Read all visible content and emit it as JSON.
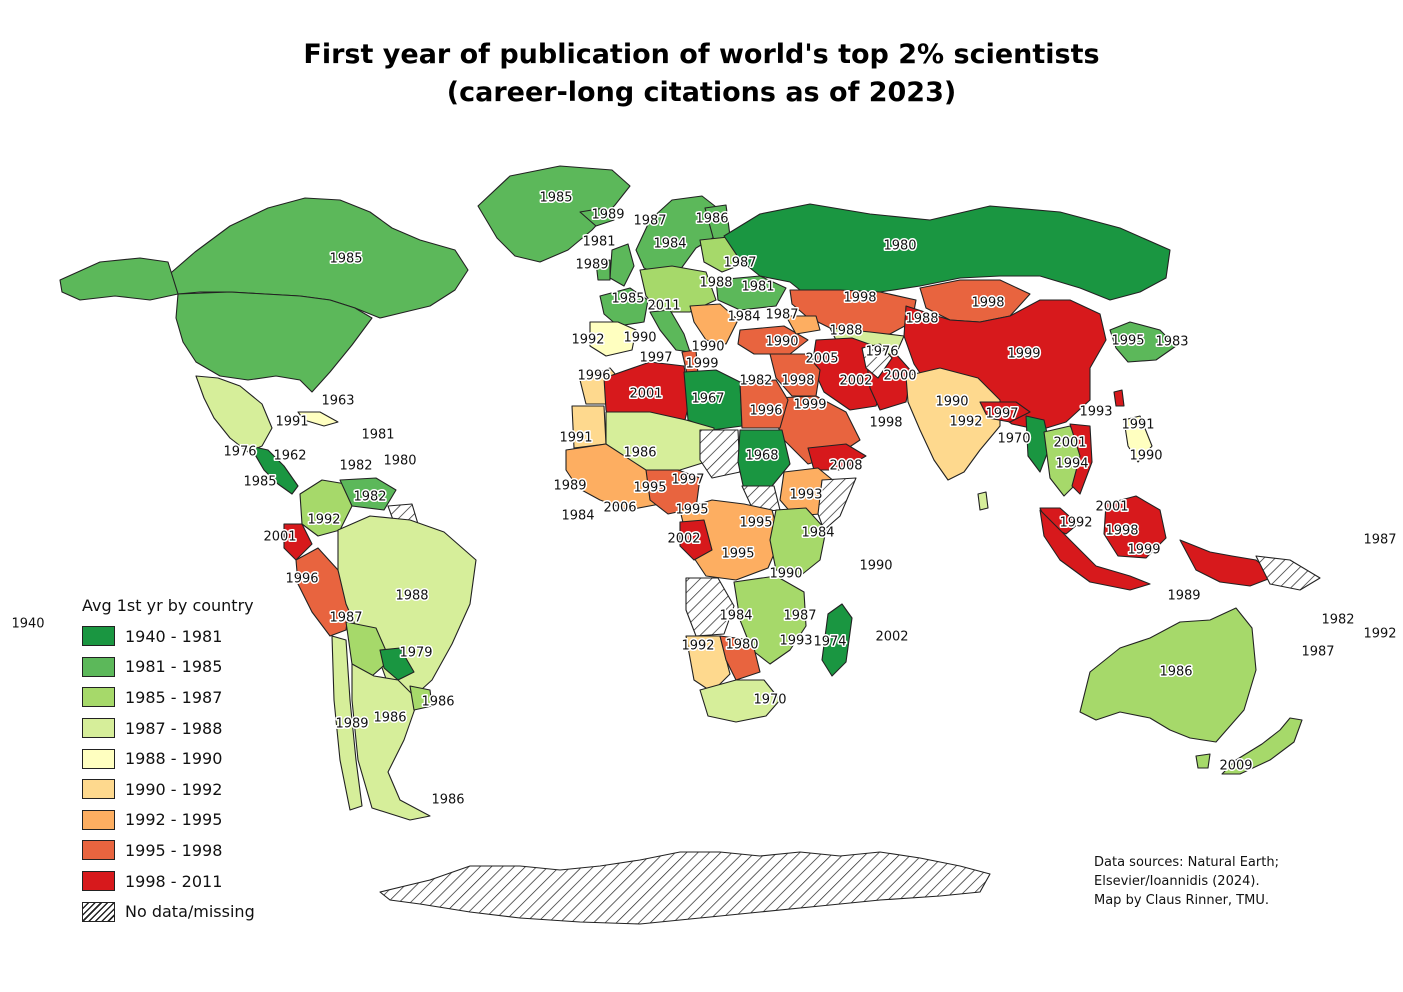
{
  "title": {
    "line1": "First year of publication of world's top 2% scientists",
    "line2": "(career-long citations as of 2023)"
  },
  "legend": {
    "title": "Avg 1st yr by country",
    "classes": [
      {
        "label": "1940 - 1981",
        "color": "#1a9641"
      },
      {
        "label": "1981 - 1985",
        "color": "#5cb85a"
      },
      {
        "label": "1985 - 1987",
        "color": "#a6d96a"
      },
      {
        "label": "1987 - 1988",
        "color": "#d6ee9a"
      },
      {
        "label": "1988 - 1990",
        "color": "#ffffc0"
      },
      {
        "label": "1990 - 1992",
        "color": "#fed98e"
      },
      {
        "label": "1992 - 1995",
        "color": "#fdae61"
      },
      {
        "label": "1995 - 1998",
        "color": "#e8643f"
      },
      {
        "label": "1998 - 2011",
        "color": "#d7191c"
      },
      {
        "label": "No data/missing",
        "color": "hatch"
      }
    ]
  },
  "map_data": {
    "type": "choropleth",
    "classes": [
      "1940-1981",
      "1981-1985",
      "1985-1987",
      "1987-1988",
      "1988-1990",
      "1990-1992",
      "1992-1995",
      "1995-1998",
      "1998-2011",
      "missing"
    ],
    "regions": [
      {
        "name": "Canada",
        "year": "1985",
        "class": 1
      },
      {
        "name": "United States",
        "year": "1983",
        "class": 1
      },
      {
        "name": "Greenland",
        "year": "1985",
        "class": 1
      },
      {
        "name": "Mexico",
        "year": "1988",
        "class": 3
      },
      {
        "name": "Russia",
        "year": "1980",
        "class": 0
      },
      {
        "name": "China",
        "year": "1999",
        "class": 8
      },
      {
        "name": "Mongolia",
        "year": "1998",
        "class": 7
      },
      {
        "name": "Kazakhstan",
        "year": "1998",
        "class": 7
      },
      {
        "name": "India",
        "year": "1992",
        "class": 5
      },
      {
        "name": "Australia",
        "year": "1987",
        "class": 2
      },
      {
        "name": "Brazil",
        "year": "1988",
        "class": 3
      },
      {
        "name": "Argentina",
        "year": "1986",
        "class": 2
      },
      {
        "name": "Libya",
        "year": "1967",
        "class": 0
      },
      {
        "name": "Egypt",
        "year": "1999",
        "class": 8
      },
      {
        "name": "Algeria",
        "year": "2001",
        "class": 8
      },
      {
        "name": "Sudan",
        "year": "1968",
        "class": 0
      },
      {
        "name": "Saudi Arabia",
        "year": "1996",
        "class": 7
      },
      {
        "name": "Iran",
        "year": "2002",
        "class": 8
      },
      {
        "name": "Indonesia",
        "year": "1999",
        "class": 8
      },
      {
        "name": "Madagascar",
        "year": "1974",
        "class": 0
      },
      {
        "name": "Antarctica",
        "year": "",
        "class": 9
      }
    ],
    "labels": [
      "1985",
      "1989",
      "1987",
      "1986",
      "1981",
      "1984",
      "1989",
      "1980",
      "1985",
      "1987",
      "1988",
      "1981",
      "1985",
      "2011",
      "1984",
      "1987",
      "1998",
      "1998",
      "1988",
      "1988",
      "1983",
      "1995",
      "1999",
      "1992",
      "1990",
      "1990",
      "1990",
      "1997",
      "1999",
      "2005",
      "1976",
      "2002",
      "2000",
      "1996",
      "2001",
      "1967",
      "1982",
      "1998",
      "1963",
      "1991",
      "1981",
      "1980",
      "1976",
      "1962",
      "1982",
      "1985",
      "1982",
      "1996",
      "1999",
      "1998",
      "1990",
      "1992",
      "1997",
      "1970",
      "2001",
      "1993",
      "1991",
      "1994",
      "1990",
      "1991",
      "1986",
      "1968",
      "2008",
      "1989",
      "1984",
      "2006",
      "1995",
      "1997",
      "1995",
      "1993",
      "1995",
      "2002",
      "1984",
      "1995",
      "1990",
      "1990",
      "1987",
      "2001",
      "1992",
      "1998",
      "1999",
      "2001",
      "1992",
      "1996",
      "1988",
      "1984",
      "1987",
      "1993",
      "1992",
      "1980",
      "1974",
      "2002",
      "1979",
      "1986",
      "1986",
      "1989",
      "1986",
      "1970",
      "1989",
      "1987",
      "1982",
      "1992",
      "1987",
      "1940",
      "2009",
      "1986",
      "1991"
    ]
  },
  "credits": {
    "line1": "Data sources: Natural Earth;",
    "line2": "Elsevier/Ioannidis (2024).",
    "line3": "Map by Claus Rinner, TMU."
  }
}
